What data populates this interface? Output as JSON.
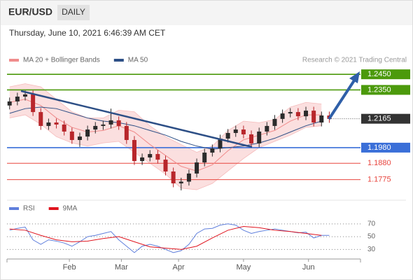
{
  "header": {
    "symbol": "EUR/USD",
    "timeframe": "DAILY",
    "datetime": "Thursday, June 10, 2021 6:46:39 AM CET"
  },
  "chart_data": [
    {
      "type": "candlestick",
      "source": "Research © 2021 Trading Central",
      "up_color": "#2b2b2b",
      "down_color": "#b8262b",
      "xlim": [
        0,
        136
      ],
      "ylim": [
        1.167,
        1.25
      ],
      "x": [
        1,
        4,
        7,
        10,
        13,
        16,
        19,
        22,
        25,
        28,
        31,
        34,
        37,
        40,
        43,
        46,
        49,
        52,
        55,
        58,
        61,
        64,
        67,
        70,
        73,
        76,
        79,
        82,
        85,
        88,
        91,
        94,
        97,
        100,
        103,
        106,
        109,
        112,
        115,
        118,
        121,
        124
      ],
      "open": [
        1.225,
        1.2276,
        1.2307,
        1.2321,
        1.2208,
        1.2119,
        1.2141,
        1.2128,
        1.2083,
        1.2029,
        1.2051,
        1.2096,
        1.2119,
        1.2128,
        1.2155,
        1.2119,
        1.2029,
        1.1894,
        1.1917,
        1.1939,
        1.1903,
        1.1827,
        1.1751,
        1.1762,
        1.1814,
        1.1885,
        1.1948,
        1.1975,
        1.2038,
        1.2074,
        1.2096,
        1.2065,
        1.2007,
        1.2083,
        1.2119,
        1.2164,
        1.2199,
        1.2208,
        1.2181,
        1.2217,
        1.2141,
        1.2186
      ],
      "high": [
        1.2301,
        1.2332,
        1.2346,
        1.2346,
        1.2233,
        1.2166,
        1.2166,
        1.2153,
        1.2108,
        1.2076,
        1.2121,
        1.2144,
        1.2153,
        1.223,
        1.218,
        1.2144,
        1.2054,
        1.1942,
        1.1964,
        1.1964,
        1.1928,
        1.1852,
        1.1787,
        1.1839,
        1.191,
        1.1973,
        1.2,
        1.2063,
        1.2099,
        1.2121,
        1.2121,
        1.209,
        1.2108,
        1.2144,
        1.2189,
        1.2224,
        1.2233,
        1.2233,
        1.2242,
        1.2242,
        1.2211,
        1.2211
      ],
      "low": [
        1.2225,
        1.2251,
        1.2282,
        1.2183,
        1.2094,
        1.2094,
        1.2103,
        1.2058,
        1.2004,
        1.1985,
        1.2026,
        1.2071,
        1.2094,
        1.2103,
        1.2094,
        1.2004,
        1.1869,
        1.1869,
        1.1892,
        1.1878,
        1.1802,
        1.1726,
        1.1706,
        1.1737,
        1.1789,
        1.186,
        1.1923,
        1.195,
        1.2013,
        1.2049,
        1.204,
        1.1982,
        1.1982,
        1.2058,
        1.2094,
        1.2139,
        1.2174,
        1.2156,
        1.2156,
        1.2116,
        1.2116,
        1.2139
      ],
      "close": [
        1.2276,
        1.2307,
        1.2321,
        1.2208,
        1.2119,
        1.2141,
        1.2128,
        1.2083,
        1.2029,
        1.2051,
        1.2096,
        1.2119,
        1.2128,
        1.2155,
        1.2119,
        1.2029,
        1.1894,
        1.1917,
        1.1939,
        1.1903,
        1.1827,
        1.1751,
        1.1762,
        1.1814,
        1.1885,
        1.1948,
        1.1975,
        1.2038,
        1.2074,
        1.2096,
        1.2065,
        1.2007,
        1.2083,
        1.2119,
        1.2164,
        1.2199,
        1.2208,
        1.2181,
        1.2217,
        1.2141,
        1.2186,
        1.2164
      ],
      "series": [
        {
          "name": "MA 20 + Bollinger Bands",
          "color": "#f08c8c",
          "x": [
            1,
            7,
            13,
            19,
            25,
            31,
            37,
            43,
            49,
            55,
            61,
            67,
            73,
            79,
            85,
            91,
            97,
            103,
            109,
            115,
            121
          ],
          "values": [
            1.227,
            1.229,
            1.225,
            1.217,
            1.211,
            1.208,
            1.209,
            1.212,
            1.208,
            1.2,
            1.193,
            1.186,
            1.183,
            1.187,
            1.196,
            1.203,
            1.206,
            1.209,
            1.215,
            1.219,
            1.219
          ],
          "upper": [
            1.237,
            1.239,
            1.237,
            1.229,
            1.221,
            1.217,
            1.217,
            1.222,
            1.221,
            1.212,
            1.205,
            1.2,
            1.195,
            1.199,
            1.209,
            1.215,
            1.214,
            1.216,
            1.224,
            1.227,
            1.226
          ],
          "lower": [
            1.217,
            1.219,
            1.213,
            1.205,
            1.201,
            1.199,
            1.201,
            1.202,
            1.195,
            1.188,
            1.181,
            1.172,
            1.171,
            1.175,
            1.183,
            1.191,
            1.198,
            1.202,
            1.206,
            1.211,
            1.212
          ]
        },
        {
          "name": "MA 50",
          "color": "#2d4f86",
          "x": [
            1,
            7,
            13,
            19,
            25,
            31,
            37,
            43,
            49,
            55,
            61,
            67,
            73,
            79,
            85,
            91,
            97,
            103,
            109,
            115,
            121
          ],
          "values": [
            1.22,
            1.223,
            1.224,
            1.223,
            1.22,
            1.217,
            1.215,
            1.214,
            1.212,
            1.209,
            1.206,
            1.202,
            1.199,
            1.197,
            1.198,
            1.199,
            1.201,
            1.204,
            1.208,
            1.212,
            1.215
          ]
        }
      ],
      "levels": [
        {
          "value": 1.245,
          "label": "1.2450",
          "color": "#4c9a0c",
          "label_box": true
        },
        {
          "value": 1.235,
          "label": "1.2350",
          "color": "#4c9a0c",
          "label_box": true
        },
        {
          "value": 1.198,
          "label": "1.1980",
          "color": "#3a6fd8",
          "label_box": true
        },
        {
          "value": 1.188,
          "label": "1.1880",
          "color": "#e8463f",
          "label_box": false
        },
        {
          "value": 1.1775,
          "label": "1.1775",
          "color": "#e8463f",
          "label_box": false
        }
      ],
      "last_price": {
        "value": 1.2165,
        "label": "1.2165",
        "color": "#333333"
      }
    },
    {
      "type": "line",
      "xlim": [
        0,
        136
      ],
      "ylim": [
        15,
        95
      ],
      "yticks": [
        30,
        50,
        70
      ],
      "grid": true,
      "xticks": [
        {
          "value": 24,
          "label": "Feb"
        },
        {
          "value": 44,
          "label": "Mar"
        },
        {
          "value": 66,
          "label": "Apr"
        },
        {
          "value": 91,
          "label": "May"
        },
        {
          "value": 116,
          "label": "Jun"
        }
      ],
      "series": [
        {
          "name": "RSI",
          "color": "#5f7fdc",
          "x": [
            1,
            4,
            7,
            10,
            13,
            16,
            19,
            22,
            25,
            28,
            31,
            34,
            37,
            40,
            43,
            46,
            49,
            52,
            55,
            58,
            61,
            64,
            67,
            70,
            73,
            76,
            79,
            82,
            85,
            88,
            91,
            94,
            97,
            100,
            103,
            106,
            109,
            112,
            115,
            118,
            121,
            124
          ],
          "values": [
            60,
            63,
            65,
            45,
            38,
            45,
            43,
            40,
            35,
            42,
            50,
            52,
            55,
            58,
            45,
            35,
            25,
            35,
            38,
            35,
            30,
            25,
            28,
            38,
            55,
            62,
            63,
            68,
            70,
            68,
            60,
            55,
            58,
            60,
            62,
            60,
            58,
            56,
            57,
            48,
            52,
            52
          ]
        },
        {
          "name": "9MA",
          "color": "#e0141e",
          "x": [
            1,
            7,
            13,
            19,
            25,
            31,
            37,
            43,
            49,
            55,
            61,
            67,
            73,
            79,
            85,
            91,
            97,
            103,
            109,
            115,
            121
          ],
          "values": [
            62,
            60,
            52,
            45,
            42,
            43,
            47,
            50,
            42,
            34,
            32,
            30,
            35,
            48,
            60,
            66,
            64,
            60,
            58,
            55,
            52
          ]
        }
      ]
    }
  ]
}
